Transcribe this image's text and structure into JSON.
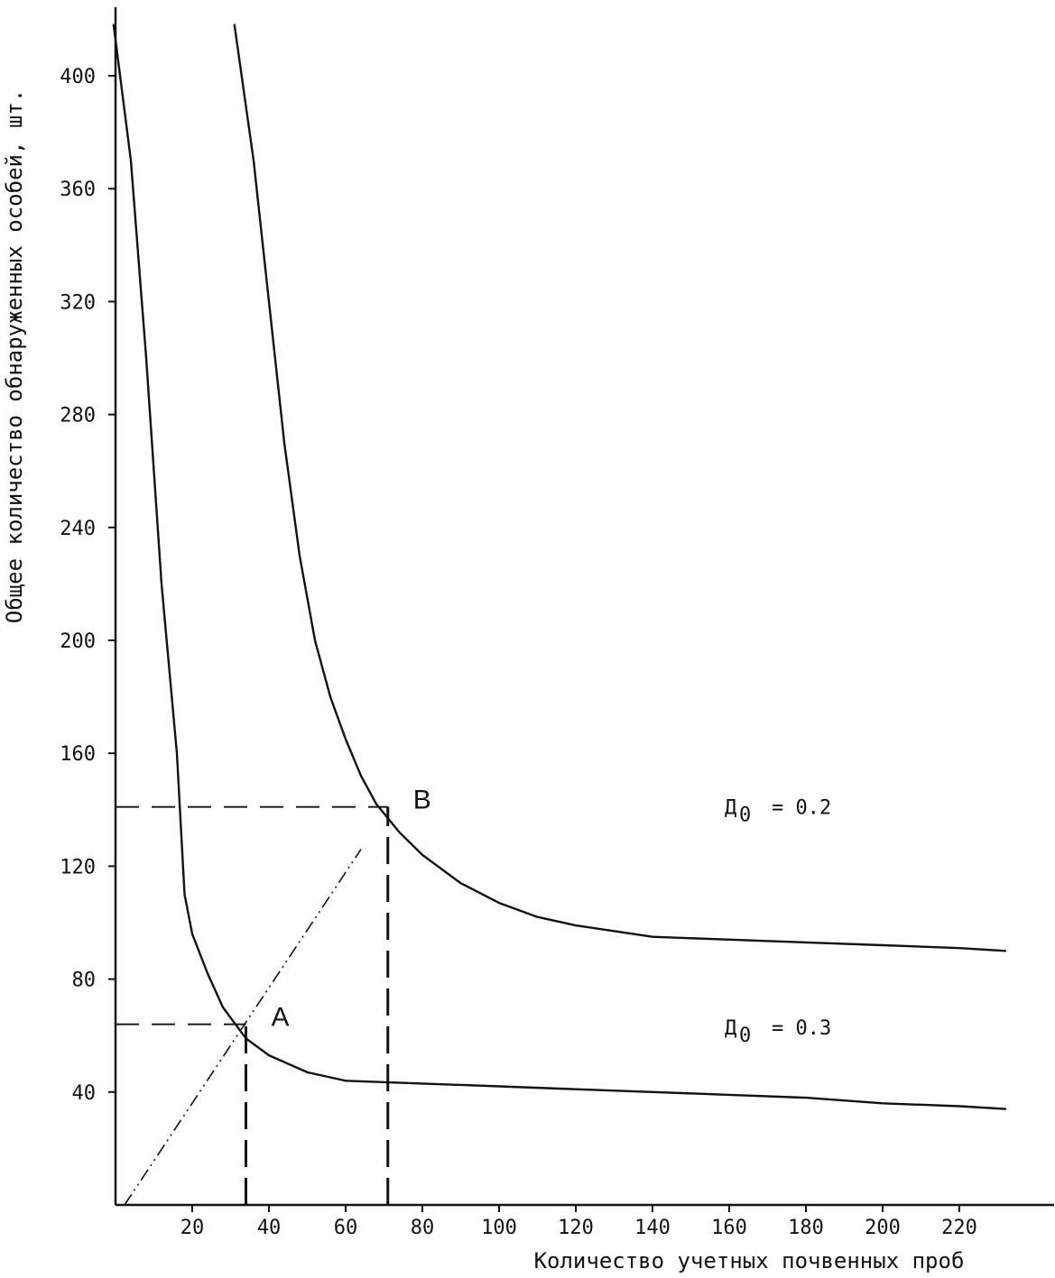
{
  "chart_data": {
    "type": "line",
    "xlabel": "Количество учетных почвенных проб",
    "ylabel": "Общее количество обнаруженных особей, шт.",
    "x_ticks": [
      20,
      40,
      60,
      80,
      100,
      120,
      140,
      160,
      180,
      200,
      220
    ],
    "x_tick_labels": [
      "20",
      "40",
      "60",
      "80",
      "100",
      "120",
      "140",
      "160",
      "180",
      "200",
      "220"
    ],
    "y_ticks": [
      40,
      80,
      120,
      160,
      200,
      240,
      280,
      320,
      360,
      400
    ],
    "y_tick_labels": [
      "40",
      "80",
      "120",
      "160",
      "200",
      "240",
      "280",
      "320",
      "360",
      "400"
    ],
    "xlim": [
      -4,
      241
    ],
    "ylim": [
      0,
      419
    ],
    "grid": false,
    "series": [
      {
        "name": "Д0 = 0.3",
        "x": [
          -0.5,
          4,
          8,
          12,
          16,
          18,
          20,
          24,
          28,
          34,
          40,
          50,
          60,
          80,
          100,
          120,
          140,
          160,
          180,
          200,
          220,
          232
        ],
        "y": [
          418,
          370,
          300,
          220,
          160,
          110,
          96,
          82,
          70,
          59,
          53,
          47,
          44,
          43,
          42,
          41,
          40,
          39,
          38,
          36,
          35,
          34
        ]
      },
      {
        "name": "Д0 = 0.2",
        "x": [
          31,
          36,
          40,
          44,
          48,
          52,
          56,
          60,
          64,
          68,
          74,
          80,
          90,
          100,
          110,
          120,
          140,
          160,
          180,
          200,
          220,
          232
        ],
        "y": [
          418,
          370,
          320,
          270,
          230,
          200,
          180,
          165,
          152,
          142,
          132,
          124,
          114,
          107,
          102,
          99,
          95,
          94,
          93,
          92,
          91,
          90
        ]
      }
    ],
    "points": [
      {
        "label": "A",
        "x": 34,
        "y": 64
      },
      {
        "label": "B",
        "x": 71,
        "y": 141
      }
    ],
    "annotations": [
      {
        "series_label": "Д",
        "subscript": "0",
        "text": "= 0.2",
        "x": 160,
        "y": 141
      },
      {
        "series_label": "Д",
        "subscript": "0",
        "text": "= 0.3",
        "x": 160,
        "y": 63
      }
    ],
    "guides": {
      "dashed_from_y_axis": [
        {
          "to_x": 34,
          "y": 64
        },
        {
          "to_x": 71,
          "y": 141
        }
      ],
      "dashed_from_x_axis": [
        {
          "x": 34,
          "to_y": 64
        },
        {
          "x": 71,
          "to_y": 141
        }
      ],
      "dash_dot_line": {
        "x1": 0,
        "y1": 0,
        "x2": 64,
        "y2": 126
      }
    }
  }
}
